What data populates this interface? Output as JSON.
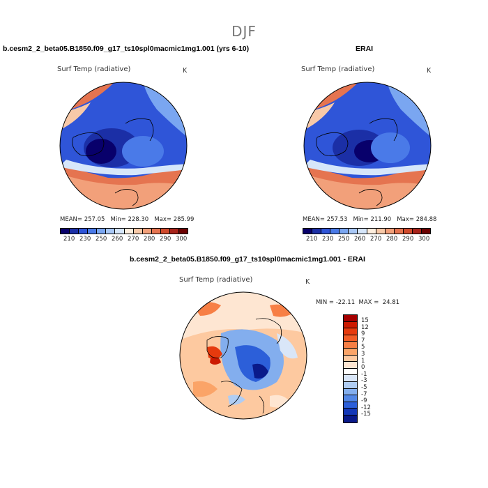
{
  "season": "DJF",
  "panels": [
    {
      "case_title": "b.cesm2_2_beta05.B1850.f09_g17_ts10spl0macmic1mg1.001 (yrs 6-10)",
      "var_title": "Surf Temp (radiative)",
      "units": "K",
      "stats": "MEAN= 257.05   Min= 228.30   Max= 285.99"
    },
    {
      "case_title": "ERAI",
      "var_title": "Surf Temp (radiative)",
      "units": "K",
      "stats": "MEAN= 257.53   Min= 211.90   Max= 284.88"
    }
  ],
  "abs_colorbar": {
    "ticks": [
      "210",
      "230",
      "250",
      "260",
      "270",
      "280",
      "290",
      "300"
    ],
    "colors": [
      "#08006b",
      "#1b2fa6",
      "#2f55d8",
      "#4a7ae8",
      "#7aa6f1",
      "#a9c8f6",
      "#d6e6fa",
      "#fdeede",
      "#f8c9a8",
      "#f2a07a",
      "#e57450",
      "#d04a2c",
      "#a8231a",
      "#6b0000"
    ]
  },
  "diff": {
    "case_title": "b.cesm2_2_beta05.B1850.f09_g17_ts10spl0macmic1mg1.001 - ERAI",
    "var_title": "Surf Temp (radiative)",
    "units": "K",
    "stats": "MIN = -22.11  MAX =  24.81",
    "colorbar": {
      "labels": [
        "15",
        "12",
        "9",
        "7",
        "5",
        "3",
        "1",
        "0",
        "-1",
        "-3",
        "-5",
        "-7",
        "-9",
        "-12",
        "-15"
      ],
      "colors": [
        "#a50000",
        "#cc1a00",
        "#e63a0d",
        "#f25c26",
        "#f77f45",
        "#fba468",
        "#fdc9a0",
        "#fee6d2",
        "#ffffff",
        "#d9e6f8",
        "#b0cdf3",
        "#83aeee",
        "#5287e6",
        "#2c5fd9",
        "#1438b8",
        "#0a1a8a"
      ]
    }
  }
}
